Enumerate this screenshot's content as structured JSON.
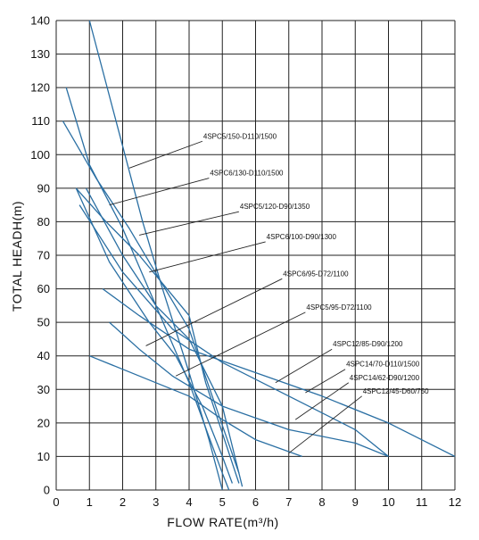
{
  "chart_data": {
    "type": "line",
    "xlabel": "FLOW RATE(m³/h)",
    "ylabel": "TOTAL HEADH(m)",
    "xlim": [
      0,
      12
    ],
    "ylim": [
      0,
      140
    ],
    "x_ticks": [
      "0",
      "1",
      "2",
      "3",
      "4",
      "5",
      "6",
      "7",
      "8",
      "9",
      "10",
      "11",
      "12"
    ],
    "y_ticks": [
      "0",
      "10",
      "20",
      "30",
      "40",
      "50",
      "60",
      "70",
      "80",
      "90",
      "100",
      "110",
      "120",
      "130",
      "140"
    ],
    "grid": true,
    "line_color": "#2a6fa3",
    "series": [
      {
        "name": "4SPC5/150-D110/1500",
        "points": [
          [
            1.0,
            140
          ],
          [
            1.8,
            110
          ],
          [
            2.6,
            80
          ],
          [
            3.2,
            60
          ],
          [
            4.0,
            35
          ],
          [
            4.6,
            15
          ],
          [
            5.0,
            0
          ]
        ],
        "label_at": [
          4.4,
          104
        ],
        "pointer_to": [
          2.2,
          96
        ]
      },
      {
        "name": "4SPC6/130-D110/1500",
        "points": [
          [
            0.3,
            120
          ],
          [
            1.0,
            97
          ],
          [
            2.0,
            78
          ],
          [
            3.0,
            55
          ],
          [
            4.0,
            32
          ],
          [
            5.0,
            5
          ],
          [
            5.2,
            0
          ]
        ],
        "label_at": [
          4.6,
          93
        ],
        "pointer_to": [
          1.6,
          85
        ]
      },
      {
        "name": "4SPC5/120-D90/1350",
        "points": [
          [
            0.2,
            110
          ],
          [
            1.2,
            93
          ],
          [
            2.2,
            78
          ],
          [
            3.1,
            63
          ],
          [
            4.0,
            48
          ],
          [
            4.8,
            25
          ],
          [
            5.5,
            5
          ]
        ],
        "label_at": [
          5.5,
          83
        ],
        "pointer_to": [
          2.5,
          76
        ]
      },
      {
        "name": "4SPC6/100-D90/1300",
        "points": [
          [
            0.6,
            90
          ],
          [
            1.5,
            80
          ],
          [
            2.5,
            70
          ],
          [
            3.5,
            58
          ],
          [
            4.0,
            52
          ],
          [
            4.5,
            32
          ],
          [
            5.5,
            2
          ]
        ],
        "label_at": [
          6.3,
          74
        ],
        "pointer_to": [
          2.8,
          65
        ]
      },
      {
        "name": "4SPC6/95-D72/1100",
        "points": [
          [
            0.6,
            90
          ],
          [
            1.6,
            68
          ],
          [
            2.8,
            50
          ],
          [
            3.6,
            40
          ],
          [
            4.4,
            25
          ],
          [
            5.0,
            10
          ],
          [
            5.3,
            2
          ]
        ],
        "label_at": [
          6.8,
          63
        ],
        "pointer_to": [
          2.7,
          43
        ]
      },
      {
        "name": "4SPC5/95-D72/1100",
        "points": [
          [
            0.9,
            90
          ],
          [
            2.0,
            70
          ],
          [
            3.0,
            55
          ],
          [
            4.0,
            45
          ],
          [
            5.0,
            25
          ],
          [
            5.6,
            1
          ]
        ],
        "label_at": [
          7.5,
          53
        ],
        "pointer_to": [
          3.6,
          34
        ]
      },
      {
        "name": "4SPC12/85-D90/1200",
        "points": [
          [
            0.7,
            85
          ],
          [
            2.0,
            65
          ],
          [
            3.5,
            48
          ],
          [
            5.0,
            38
          ],
          [
            7.0,
            28
          ],
          [
            9.0,
            18
          ],
          [
            10.0,
            10
          ]
        ],
        "label_at": [
          8.3,
          42
        ],
        "pointer_to": [
          6.6,
          32
        ]
      },
      {
        "name": "4SPC14/70-D110/1500",
        "points": [
          [
            1.4,
            60
          ],
          [
            2.5,
            52
          ],
          [
            4.0,
            42
          ],
          [
            6.0,
            35
          ],
          [
            8.0,
            28
          ],
          [
            10.0,
            20
          ],
          [
            12.0,
            10
          ]
        ],
        "label_at": [
          8.7,
          36
        ],
        "pointer_to": [
          7.5,
          29
        ]
      },
      {
        "name": "4SPC14/62-D90/1200",
        "points": [
          [
            1.6,
            50
          ],
          [
            2.5,
            42
          ],
          [
            3.5,
            34
          ],
          [
            5.0,
            25
          ],
          [
            7.0,
            18
          ],
          [
            9.0,
            14
          ],
          [
            10.0,
            10
          ]
        ],
        "label_at": [
          8.8,
          32
        ],
        "pointer_to": [
          7.2,
          21
        ]
      },
      {
        "name": "4SPC12/45-D60/750",
        "points": [
          [
            1.0,
            40
          ],
          [
            2.0,
            36
          ],
          [
            3.0,
            32
          ],
          [
            4.0,
            28
          ],
          [
            5.0,
            21
          ],
          [
            6.0,
            15
          ],
          [
            7.4,
            10
          ]
        ],
        "label_at": [
          9.2,
          28
        ],
        "pointer_to": [
          7.0,
          11
        ]
      }
    ]
  }
}
